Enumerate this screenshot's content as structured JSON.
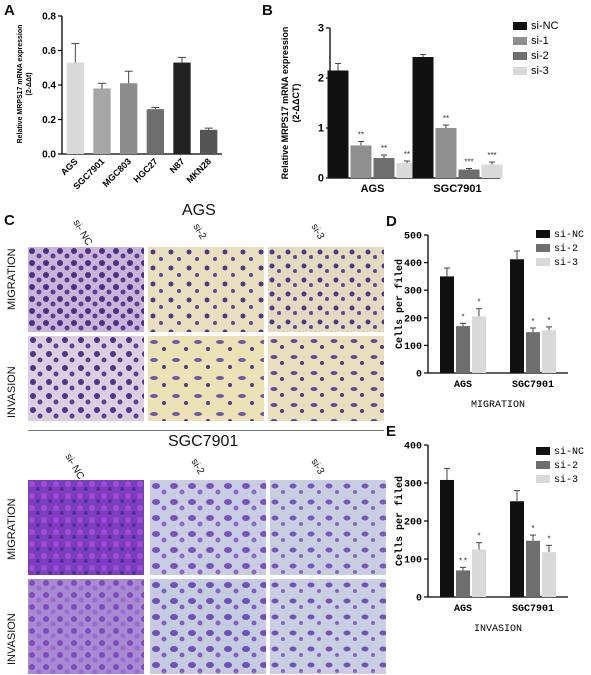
{
  "panels": {
    "A": "A",
    "B": "B",
    "C": "C",
    "D": "D",
    "E": "E"
  },
  "colors": {
    "black": "#111111",
    "dark_gray": "#6e6e6e",
    "light_gray": "#d4d4d4",
    "mid_gray": "#a6a6a6",
    "migration_ags_bg": "#cdb9d6",
    "cell_purple": "#5a3c8e",
    "yellow_bg": "#e9dfb8",
    "blue_bg": "#c8cde0",
    "sgc_purple": "#7a3fb8"
  },
  "panel_c": {
    "ags_title": "AGS",
    "sgc_title": "SGC7901",
    "col_labels": [
      "si-\nNC",
      "si-2",
      "si-3"
    ],
    "row_labels": [
      "MIGRATION",
      "INVASION"
    ]
  },
  "chart_data": [
    {
      "id": "A",
      "type": "bar",
      "ylabel": "Relative MRPS17 mRNA expression\n(2-ΔΔt)",
      "categories": [
        "AGS",
        "SGC7901",
        "MGC803",
        "HGC27",
        "N87",
        "MKN28"
      ],
      "values": [
        0.53,
        0.38,
        0.41,
        0.26,
        0.53,
        0.14
      ],
      "errors": [
        0.11,
        0.03,
        0.07,
        0.01,
        0.03,
        0.01
      ],
      "bar_colors": [
        "#d9d9d9",
        "#a6a6a6",
        "#8c8c8c",
        "#6e6e6e",
        "#222222",
        "#555555"
      ],
      "ylim": [
        0,
        0.8
      ],
      "yticks": [
        "0.0",
        "0.2",
        "0.4",
        "0.6",
        "0.8"
      ]
    },
    {
      "id": "B",
      "type": "bar",
      "ylabel": "Relative MRPS17 mRNA expression\n(2-ΔΔCT)",
      "categories": [
        "AGS",
        "SGC7901"
      ],
      "series": [
        {
          "name": "si-NC",
          "values": [
            2.15,
            2.42
          ],
          "errors": [
            0.14,
            0.05
          ],
          "color": "#111111",
          "sig": [
            "",
            ""
          ]
        },
        {
          "name": "si-1",
          "values": [
            0.65,
            1.0
          ],
          "errors": [
            0.08,
            0.06
          ],
          "color": "#8f8f8f",
          "sig": [
            "**",
            "**"
          ]
        },
        {
          "name": "si-2",
          "values": [
            0.4,
            0.17
          ],
          "errors": [
            0.06,
            0.02
          ],
          "color": "#6e6e6e",
          "sig": [
            "**",
            "***"
          ]
        },
        {
          "name": "si-3",
          "values": [
            0.3,
            0.27
          ],
          "errors": [
            0.04,
            0.05
          ],
          "color": "#d9d9d9",
          "sig": [
            "**",
            "***"
          ]
        }
      ],
      "ylim": [
        0,
        3
      ],
      "yticks": [
        "0",
        "1",
        "2",
        "3"
      ]
    },
    {
      "id": "D",
      "type": "bar",
      "ylabel": "Cells per filed",
      "xlabel": "MIGRATION",
      "categories": [
        "AGS",
        "SGC7901"
      ],
      "series": [
        {
          "name": "si-NC",
          "values": [
            350,
            412
          ],
          "errors": [
            30,
            30
          ],
          "color": "#111111",
          "sig": [
            "",
            ""
          ]
        },
        {
          "name": "si-2",
          "values": [
            170,
            148
          ],
          "errors": [
            10,
            15
          ],
          "color": "#6e6e6e",
          "sig": [
            "*",
            "*"
          ]
        },
        {
          "name": "si-3",
          "values": [
            205,
            155
          ],
          "errors": [
            28,
            12
          ],
          "color": "#d9d9d9",
          "sig": [
            "*",
            "*"
          ]
        }
      ],
      "ylim": [
        0,
        500
      ],
      "yticks": [
        "0",
        "100",
        "200",
        "300",
        "400",
        "500"
      ]
    },
    {
      "id": "E",
      "type": "bar",
      "ylabel": "Cells per filed",
      "xlabel": "INVASION",
      "categories": [
        "AGS",
        "SGC7901"
      ],
      "series": [
        {
          "name": "si-NC",
          "values": [
            308,
            252
          ],
          "errors": [
            30,
            28
          ],
          "color": "#111111",
          "sig": [
            "",
            ""
          ]
        },
        {
          "name": "si-2",
          "values": [
            70,
            148
          ],
          "errors": [
            8,
            15
          ],
          "color": "#6e6e6e",
          "sig": [
            "**",
            "*"
          ]
        },
        {
          "name": "si-3",
          "values": [
            125,
            118
          ],
          "errors": [
            18,
            18
          ],
          "color": "#d9d9d9",
          "sig": [
            "*",
            "*"
          ]
        }
      ],
      "ylim": [
        0,
        400
      ],
      "yticks": [
        "0",
        "100",
        "200",
        "300",
        "400"
      ]
    }
  ]
}
